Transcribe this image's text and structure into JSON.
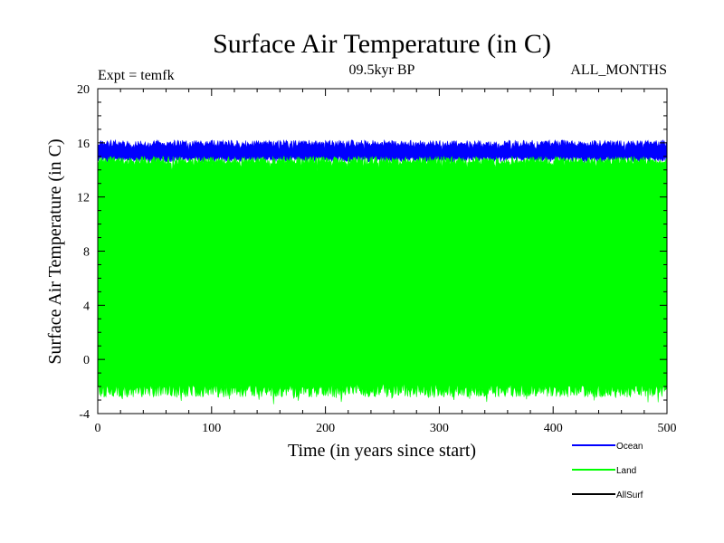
{
  "header": {
    "title": "Surface Air Temperature (in C)",
    "experiment": "Expt = temfk",
    "period": "09.5kyr BP",
    "months": "ALL_MONTHS"
  },
  "colors": {
    "ocean": "#0000ff",
    "land": "#00ff00",
    "allsurf": "#000000",
    "axis": "#000000"
  },
  "chart_data": {
    "type": "line",
    "title": "Surface Air Temperature (in C)",
    "xlabel": "Time (in years since start)",
    "ylabel": "Surface Air Temperature (in C)",
    "xlim": [
      0,
      500
    ],
    "ylim": [
      -4,
      20
    ],
    "xticks": [
      0,
      100,
      200,
      300,
      400,
      500
    ],
    "yticks": [
      -4,
      0,
      4,
      8,
      12,
      16,
      20
    ],
    "x_step_years": 0.0833,
    "series": [
      {
        "name": "Ocean",
        "color": "#0000ff",
        "description": "monthly values, annual cycle band",
        "range_min": 14.6,
        "range_max": 16.2,
        "mean": 15.4
      },
      {
        "name": "Land",
        "color": "#00ff00",
        "description": "monthly values, annual cycle band",
        "range_min": -2.5,
        "range_max": 15.0,
        "mean": 6.5
      },
      {
        "name": "AllSurf",
        "color": "#000000",
        "description": "not visible (hidden beneath other series)",
        "range_min": null,
        "range_max": null
      }
    ],
    "legend": {
      "position": "bottom-right",
      "entries": [
        "Ocean",
        "Land",
        "AllSurf"
      ]
    }
  }
}
